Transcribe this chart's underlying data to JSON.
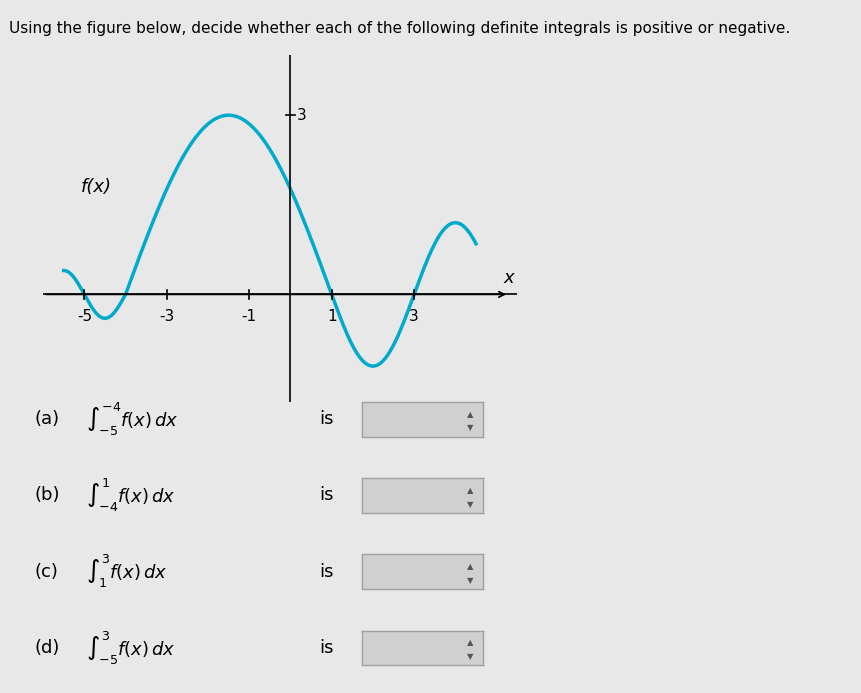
{
  "title": "Using the figure below, decide whether each of the following definite integrals is positive or negative.",
  "curve_color": "#00AACC",
  "axis_color": "#000000",
  "bg_color": "#E8E8E8",
  "xlim": [
    -6,
    5
  ],
  "ylim": [
    -2,
    4
  ],
  "xticks": [
    -5,
    -3,
    -1,
    1,
    3
  ],
  "yticks": [
    3
  ],
  "fx_label": "f(x)",
  "x_label": "x",
  "y_peak_label": "3",
  "parts": [
    {
      "label": "(a)",
      "integral": "\\int_{-5}^{-4} f(x)\\,dx",
      "text": "is"
    },
    {
      "label": "(b)",
      "integral": "\\int_{-4}^{1} f(x)\\,dx",
      "text": "is"
    },
    {
      "label": "(c)",
      "integral": "\\int_{1}^{3} f(x)\\,dx",
      "text": "is"
    },
    {
      "label": "(d)",
      "integral": "\\int_{-5}^{3} f(x)\\,dx",
      "text": "is"
    }
  ]
}
